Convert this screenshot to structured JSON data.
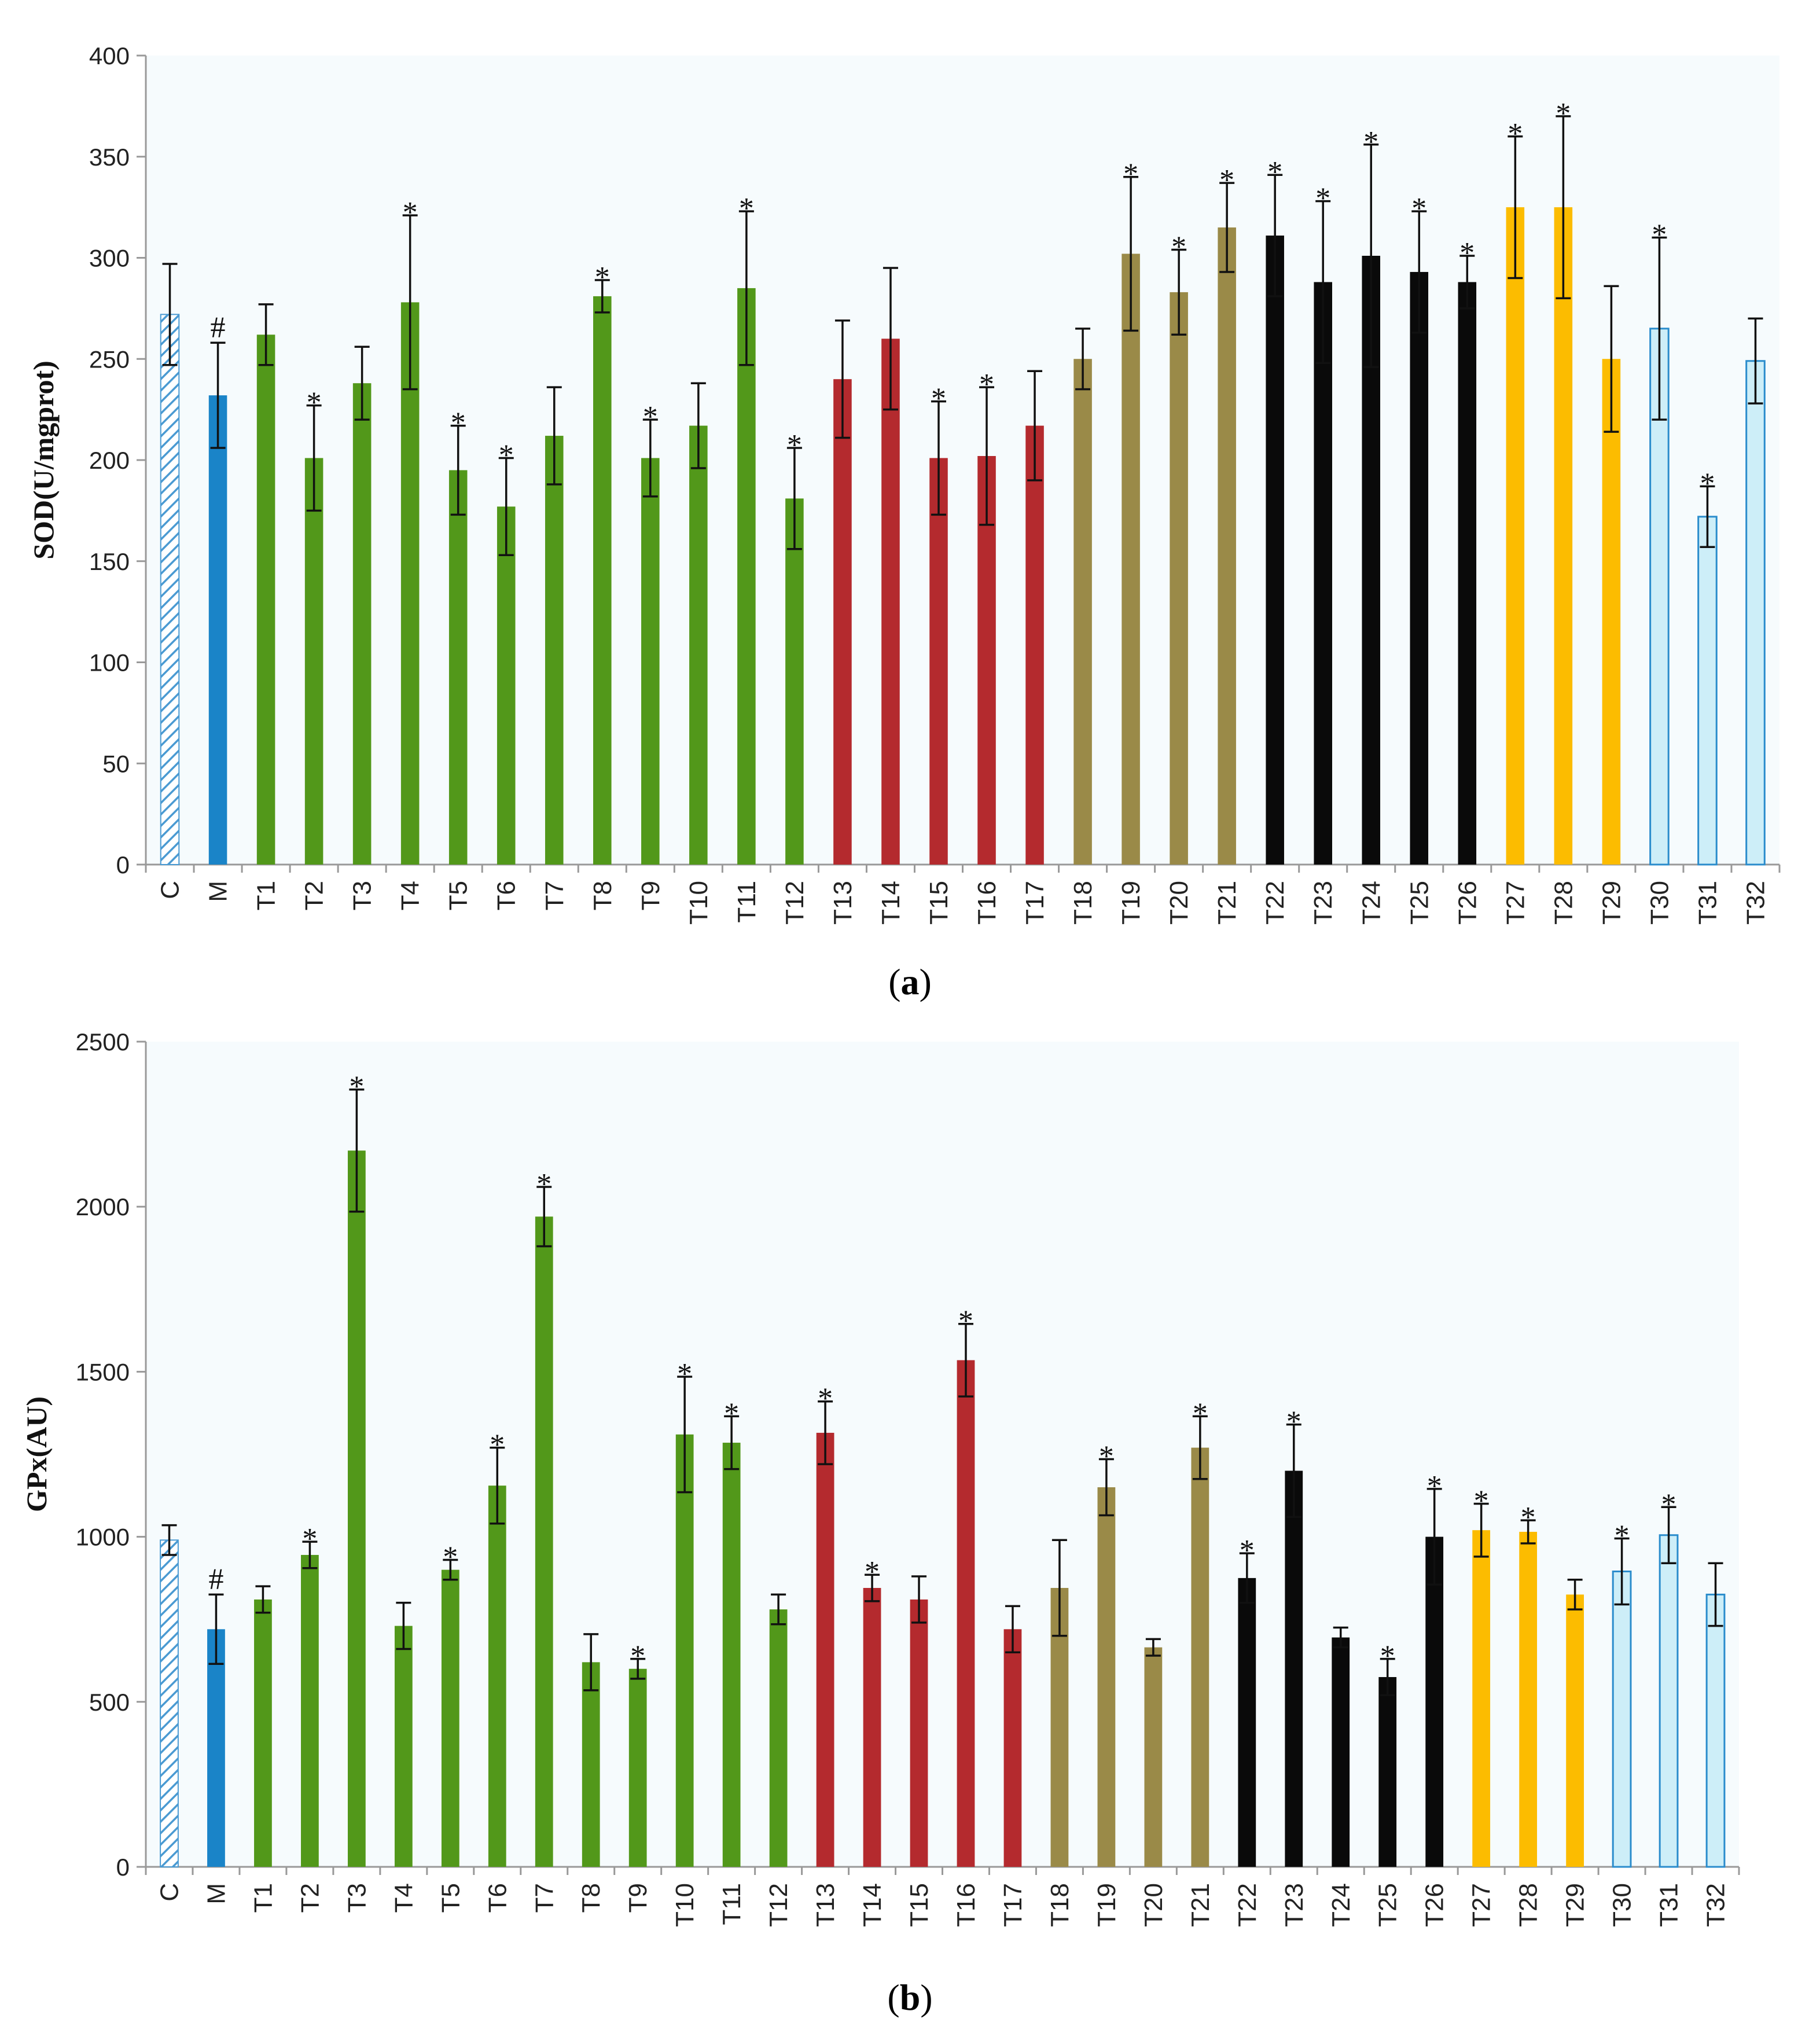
{
  "colors": {
    "control": "#4a9ad2",
    "model": "#1a84c8",
    "green": "#52981a",
    "red": "#b42a2e",
    "olive": "#9a8a48",
    "black": "#0a0a0a",
    "orange": "#fcbc00",
    "lightblue": "#cdeef8",
    "lightblue_edge": "#2a8ccc",
    "axis": "#999999",
    "plot_bg": "#f6fbfd"
  },
  "chart_data": [
    {
      "id": "a",
      "type": "bar",
      "caption": "a",
      "title": "",
      "xlabel": "",
      "ylabel": "SOD(U/mgprot)",
      "ylim": [
        0,
        400
      ],
      "yticks": [
        0,
        50,
        100,
        150,
        200,
        250,
        300,
        350,
        400
      ],
      "categories": [
        "C",
        "M",
        "T1",
        "T2",
        "T3",
        "T4",
        "T5",
        "T6",
        "T7",
        "T8",
        "T9",
        "T10",
        "T11",
        "T12",
        "T13",
        "T14",
        "T15",
        "T16",
        "T17",
        "T18",
        "T19",
        "T20",
        "T21",
        "T22",
        "T23",
        "T24",
        "T25",
        "T26",
        "T27",
        "T28",
        "T29",
        "T30",
        "T31",
        "T32"
      ],
      "groups": [
        "control",
        "model",
        "green",
        "green",
        "green",
        "green",
        "green",
        "green",
        "green",
        "green",
        "green",
        "green",
        "green",
        "green",
        "red",
        "red",
        "red",
        "red",
        "red",
        "olive",
        "olive",
        "olive",
        "olive",
        "black",
        "black",
        "black",
        "black",
        "black",
        "orange",
        "orange",
        "orange",
        "lightblue",
        "lightblue",
        "lightblue"
      ],
      "values": [
        272,
        232,
        262,
        201,
        238,
        278,
        195,
        177,
        212,
        281,
        201,
        217,
        285,
        181,
        240,
        260,
        201,
        202,
        217,
        250,
        302,
        283,
        315,
        311,
        288,
        301,
        293,
        288,
        325,
        325,
        250,
        265,
        172,
        249
      ],
      "errors": [
        25,
        26,
        15,
        26,
        18,
        43,
        22,
        24,
        24,
        8,
        19,
        21,
        38,
        25,
        29,
        35,
        28,
        34,
        27,
        15,
        38,
        21,
        22,
        30,
        40,
        55,
        30,
        13,
        35,
        45,
        36,
        45,
        15,
        21
      ],
      "marks": [
        "",
        "#",
        "",
        "*",
        "",
        "*",
        "*",
        "*",
        "",
        "*",
        "*",
        "",
        "*",
        "*",
        "",
        "",
        "*",
        "*",
        "",
        "",
        "*",
        "*",
        "*",
        "*",
        "*",
        "*",
        "*",
        "*",
        "*",
        "*",
        "",
        "*",
        "*",
        ""
      ]
    },
    {
      "id": "b",
      "type": "bar",
      "caption": "b",
      "title": "",
      "xlabel": "",
      "ylabel": "GPx(AU)",
      "ylim": [
        0,
        2500
      ],
      "yticks": [
        0,
        500,
        1000,
        1500,
        2000,
        2500
      ],
      "categories": [
        "C",
        "M",
        "T1",
        "T2",
        "T3",
        "T4",
        "T5",
        "T6",
        "T7",
        "T8",
        "T9",
        "T10",
        "T11",
        "T12",
        "T13",
        "T14",
        "T15",
        "T16",
        "T17",
        "T18",
        "T19",
        "T20",
        "T21",
        "T22",
        "T23",
        "T24",
        "T25",
        "T26",
        "T27",
        "T28",
        "T29",
        "T30",
        "T31",
        "T32"
      ],
      "groups": [
        "control",
        "model",
        "green",
        "green",
        "green",
        "green",
        "green",
        "green",
        "green",
        "green",
        "green",
        "green",
        "green",
        "green",
        "red",
        "red",
        "red",
        "red",
        "red",
        "olive",
        "olive",
        "olive",
        "olive",
        "black",
        "black",
        "black",
        "black",
        "black",
        "orange",
        "orange",
        "orange",
        "lightblue",
        "lightblue",
        "lightblue"
      ],
      "values": [
        990,
        720,
        810,
        945,
        2170,
        730,
        900,
        1155,
        1970,
        620,
        600,
        1310,
        1285,
        780,
        1315,
        845,
        810,
        1535,
        720,
        845,
        1150,
        665,
        1270,
        875,
        1200,
        695,
        575,
        1000,
        1020,
        1015,
        825,
        895,
        1005,
        825
      ],
      "errors": [
        45,
        105,
        40,
        40,
        185,
        70,
        30,
        115,
        90,
        85,
        30,
        175,
        80,
        45,
        95,
        40,
        70,
        110,
        70,
        145,
        85,
        25,
        95,
        75,
        140,
        30,
        55,
        145,
        80,
        35,
        45,
        100,
        85,
        95
      ],
      "marks": [
        "",
        "#",
        "",
        "*",
        "*",
        "",
        "*",
        "*",
        "*",
        "",
        "*",
        "*",
        "*",
        "",
        "*",
        "*",
        "",
        "*",
        "",
        "",
        "*",
        "",
        "*",
        "*",
        "*",
        "",
        "*",
        "*",
        "*",
        "*",
        "",
        "*",
        "*",
        ""
      ]
    }
  ]
}
